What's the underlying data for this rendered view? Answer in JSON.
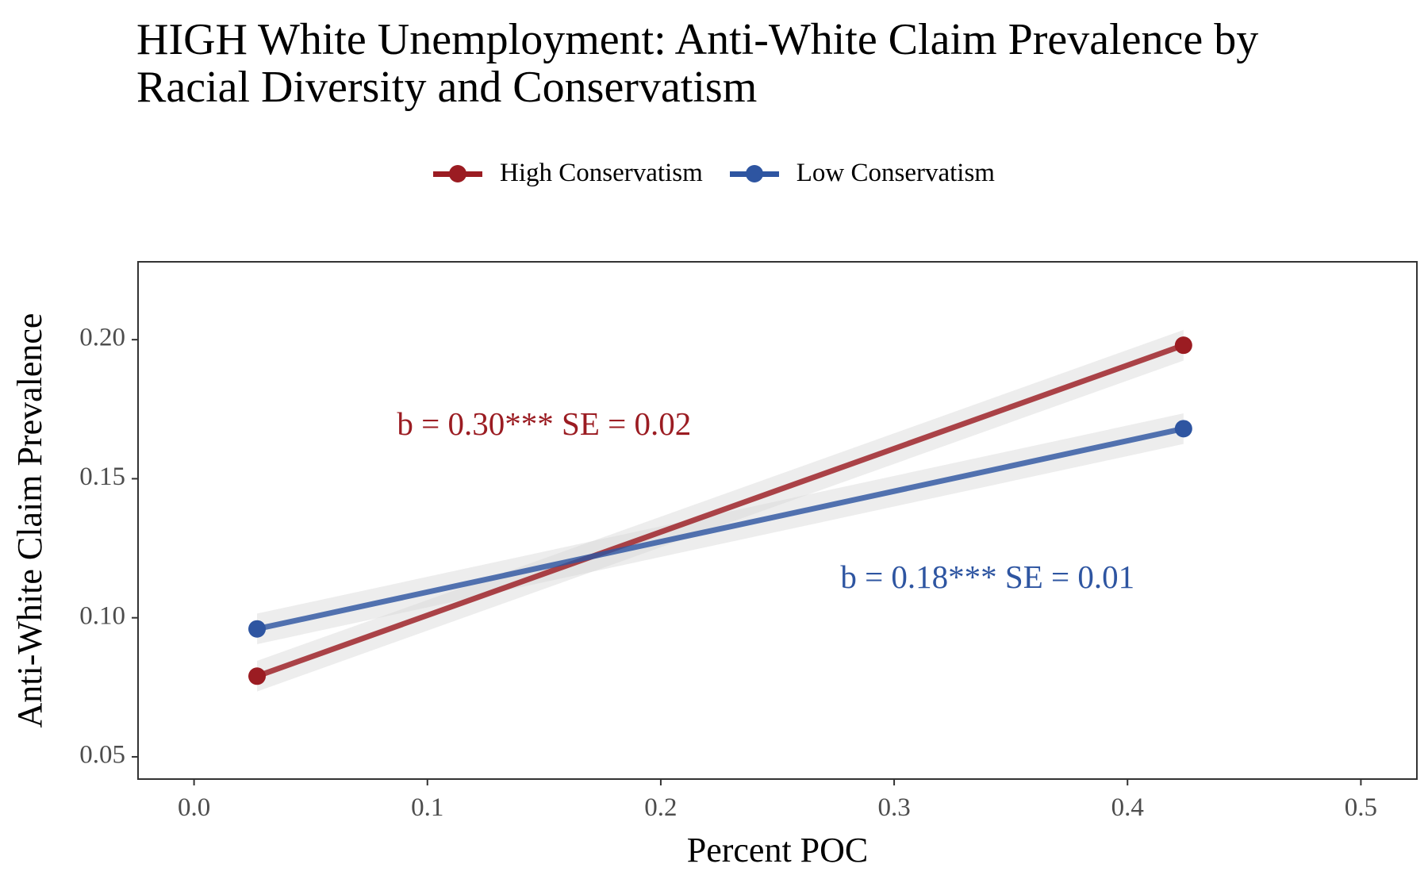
{
  "chart_data": {
    "type": "line",
    "title_lines": [
      "HIGH White Unemployment: Anti-White Claim Prevalence by",
      "Racial Diversity and Conservatism"
    ],
    "xlabel": "Percent POC",
    "ylabel": "Anti-White Claim Prevalence",
    "xlim": [
      -0.024,
      0.524
    ],
    "ylim": [
      0.042,
      0.228
    ],
    "x_ticks": [
      "0.0",
      "0.1",
      "0.2",
      "0.3",
      "0.4",
      "0.5"
    ],
    "y_ticks": [
      "0.05",
      "0.10",
      "0.15",
      "0.20"
    ],
    "legend_position": "top",
    "grid": false,
    "series": [
      {
        "name": "High Conservatism",
        "color": "#9B1C22",
        "x": [
          0.027,
          0.424
        ],
        "y": [
          0.079,
          0.198
        ],
        "ci_halfwidth": [
          0.0055,
          0.0055
        ],
        "annotation": "b = 0.30*** SE = 0.02"
      },
      {
        "name": "Low Conservatism",
        "color": "#2E55A1",
        "x": [
          0.027,
          0.424
        ],
        "y": [
          0.096,
          0.168
        ],
        "ci_halfwidth": [
          0.0055,
          0.0055
        ],
        "annotation": "b = 0.18*** SE = 0.01"
      }
    ]
  }
}
